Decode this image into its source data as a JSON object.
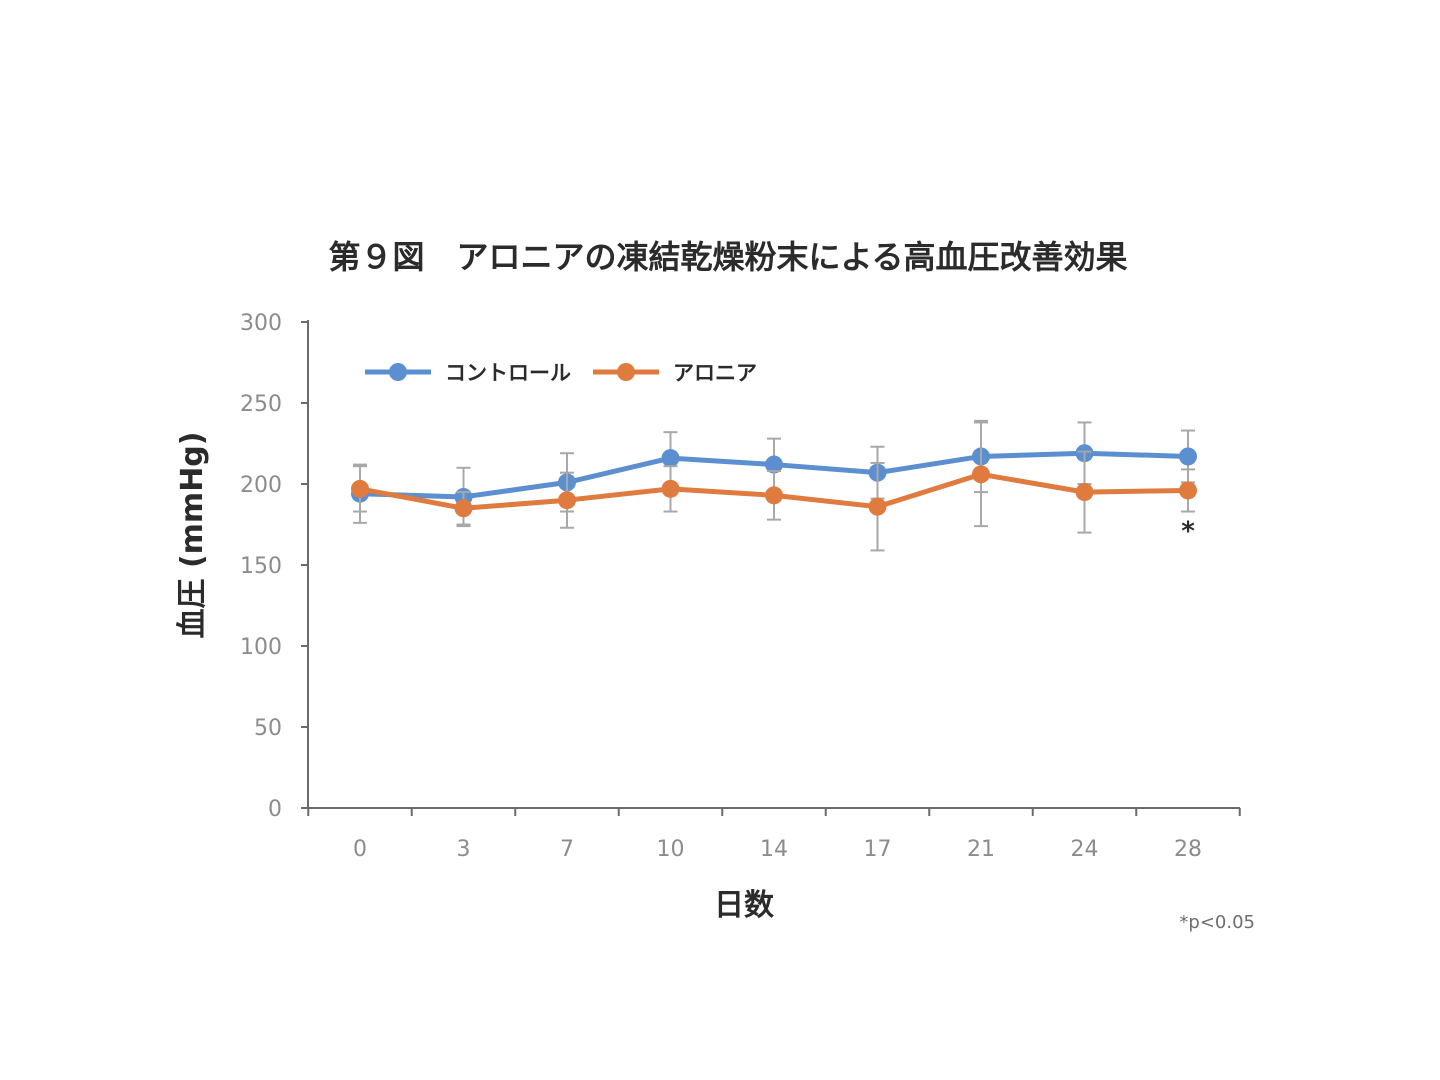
{
  "chart_data": {
    "type": "line",
    "title": "第９図　アロニアの凍結乾燥粉末による高血圧改善効果",
    "xlabel": "日数",
    "ylabel": "血圧 (mmHg)",
    "categories": [
      "0",
      "3",
      "7",
      "10",
      "14",
      "17",
      "21",
      "24",
      "28"
    ],
    "ylim": [
      0,
      300
    ],
    "yticks": [
      0,
      50,
      100,
      150,
      200,
      250,
      300
    ],
    "grid": false,
    "legend_position": "top-left",
    "series": [
      {
        "name": "コントロール",
        "color": "#5b8fd0",
        "values": [
          194,
          192,
          201,
          216,
          212,
          207,
          217,
          219,
          217
        ],
        "error": [
          18,
          18,
          18,
          16,
          16,
          16,
          22,
          19,
          16
        ]
      },
      {
        "name": "アロニア",
        "color": "#e07b3f",
        "values": [
          197,
          185,
          190,
          197,
          193,
          186,
          206,
          195,
          196
        ],
        "error": [
          14,
          10,
          17,
          14,
          15,
          27,
          32,
          25,
          13
        ]
      }
    ],
    "significance_marker": {
      "category": "28",
      "text": "*"
    },
    "footnote": "*p<0.05"
  }
}
